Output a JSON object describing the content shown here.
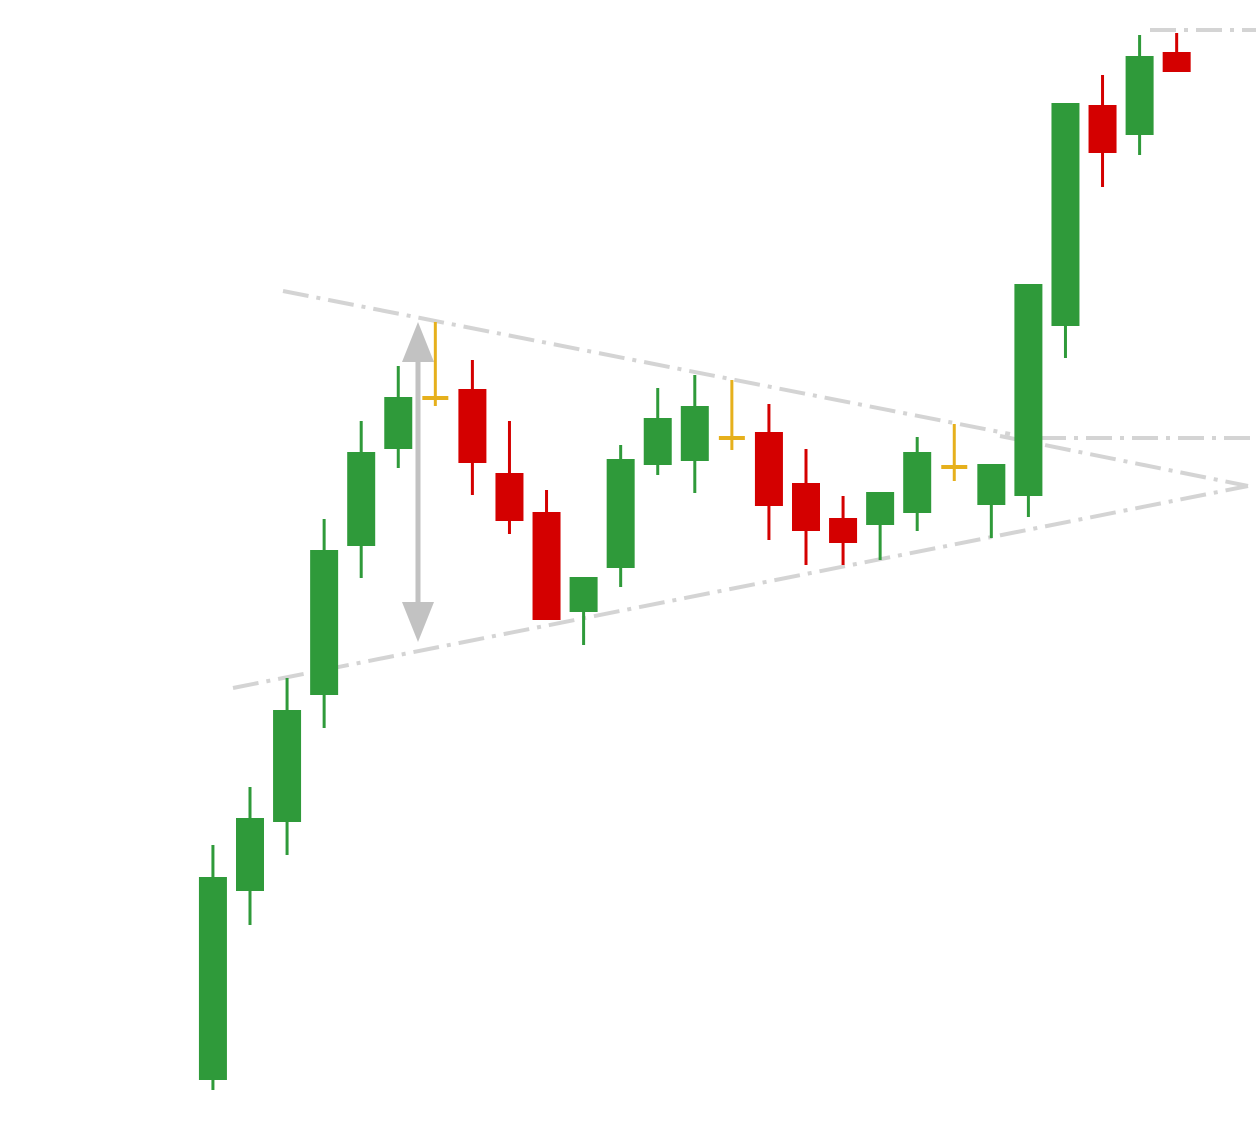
{
  "chart_data": {
    "type": "candlestick",
    "categories": [
      null,
      null,
      null,
      null,
      null,
      null,
      null,
      null,
      null,
      null,
      null,
      null,
      null,
      null,
      null,
      null,
      null,
      null,
      null,
      null,
      null,
      null,
      null,
      null,
      null,
      null,
      null
    ],
    "open": [
      46,
      235,
      304,
      431,
      580,
      677,
      728,
      737,
      653,
      614,
      514,
      558,
      661,
      665,
      688,
      694,
      643,
      608,
      601,
      613,
      659,
      621,
      630,
      800,
      1021,
      991,
      1074
    ],
    "high": [
      281,
      339,
      448,
      607,
      705,
      760,
      804,
      766,
      705,
      636,
      549,
      681,
      738,
      751,
      746,
      722,
      677,
      630,
      634,
      689,
      702,
      662,
      842,
      1023,
      1051,
      1091,
      1093
    ],
    "low": [
      36,
      201,
      271,
      398,
      548,
      658,
      720,
      631,
      592,
      506,
      481,
      539,
      651,
      633,
      676,
      586,
      561,
      561,
      566,
      595,
      645,
      588,
      609,
      768,
      939,
      971,
      1054
    ],
    "close": [
      249,
      308,
      416,
      576,
      674,
      729,
      728,
      663,
      605,
      506,
      549,
      667,
      708,
      720,
      688,
      620,
      595,
      583,
      634,
      674,
      659,
      662,
      842,
      1023,
      973,
      1070,
      1054
    ],
    "ylim": [
      0,
      1126
    ],
    "colors": {
      "up": "#2f9a3a",
      "down": "#d40000",
      "doji": "#e6b01c"
    }
  }
}
